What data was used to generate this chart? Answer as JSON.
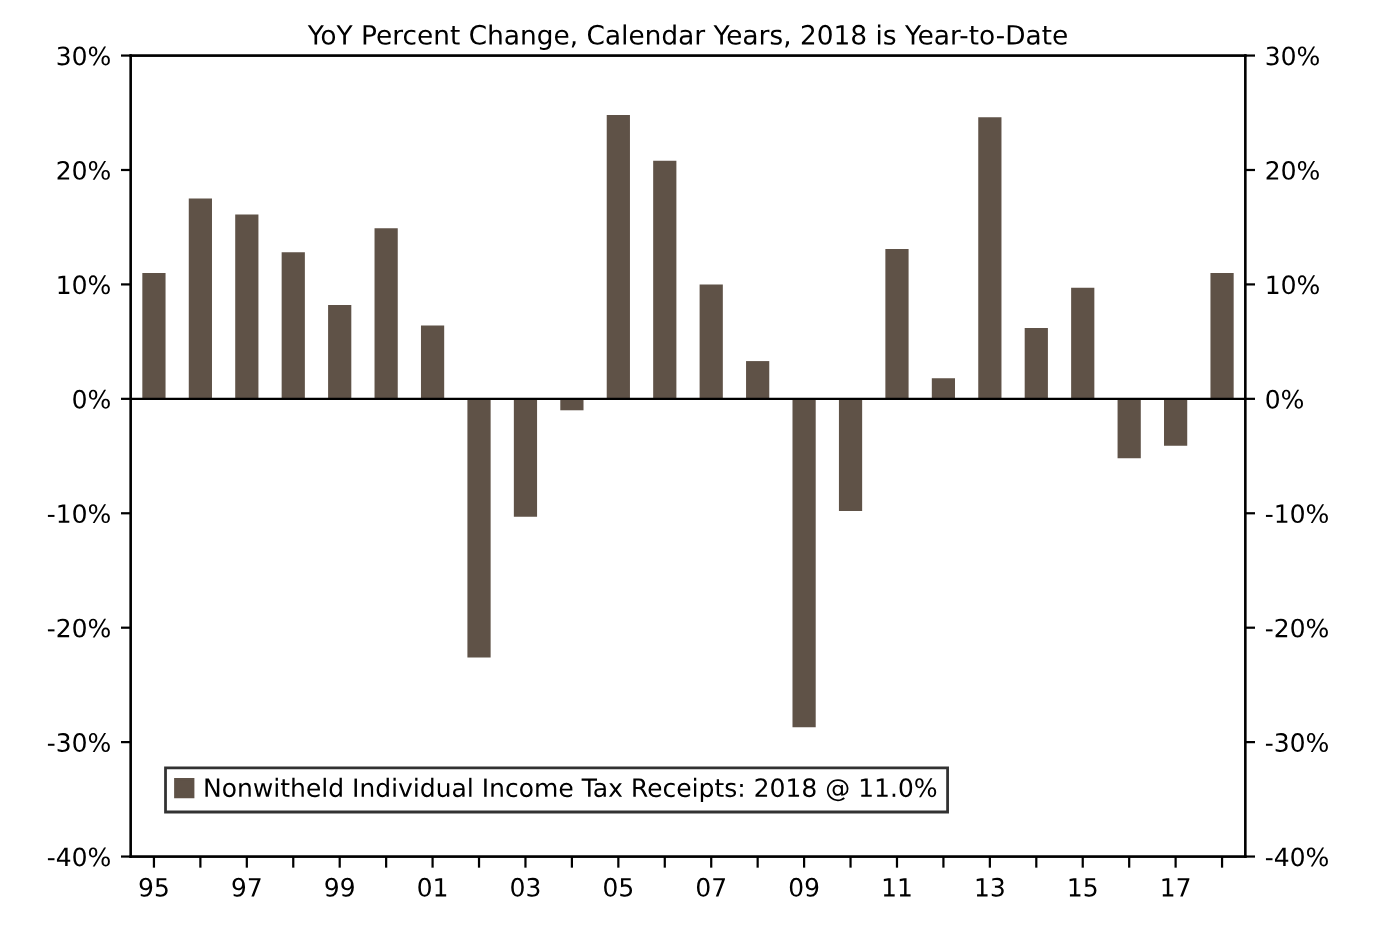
{
  "chart_data": {
    "type": "bar",
    "title": "YoY Percent Change, Calendar Years, 2018 is Year-to-Date",
    "categories": [
      "95",
      null,
      "97",
      null,
      "99",
      null,
      "01",
      null,
      "03",
      null,
      "05",
      null,
      "07",
      null,
      "09",
      null,
      "11",
      null,
      "13",
      null,
      "15",
      null,
      "17",
      null
    ],
    "series": [
      {
        "name": "Nonwitheld Individual Income Tax Receipts: 2018 @ 11.0%",
        "color": "#5f5247",
        "values": [
          11.0,
          17.5,
          16.1,
          12.8,
          8.2,
          14.9,
          6.4,
          -22.6,
          -10.3,
          -1.0,
          24.8,
          20.8,
          10.0,
          3.3,
          -28.7,
          -9.8,
          13.1,
          1.8,
          24.6,
          6.2,
          9.7,
          -5.2,
          -4.1,
          11.0
        ]
      }
    ],
    "ylim": [
      -40,
      30
    ],
    "yticks": [
      {
        "value": -40,
        "label": "-40%"
      },
      {
        "value": -30,
        "label": "-30%"
      },
      {
        "value": -20,
        "label": "-20%"
      },
      {
        "value": -10,
        "label": "-10%"
      },
      {
        "value": 0,
        "label": "0%"
      },
      {
        "value": 10,
        "label": "10%"
      },
      {
        "value": 20,
        "label": "20%"
      },
      {
        "value": 30,
        "label": "30%"
      }
    ],
    "y2lim": [
      -40,
      30
    ],
    "y2ticks": [
      {
        "value": -40,
        "label": "-40%"
      },
      {
        "value": -30,
        "label": "-30%"
      },
      {
        "value": -20,
        "label": "-20%"
      },
      {
        "value": -10,
        "label": "-10%"
      },
      {
        "value": 0,
        "label": "0%"
      },
      {
        "value": 10,
        "label": "10%"
      },
      {
        "value": 20,
        "label": "20%"
      },
      {
        "value": 30,
        "label": "30%"
      }
    ],
    "ref_lines": [
      {
        "axis": "y",
        "value": 0,
        "color": "#000000"
      }
    ],
    "legend": "bottom left"
  }
}
